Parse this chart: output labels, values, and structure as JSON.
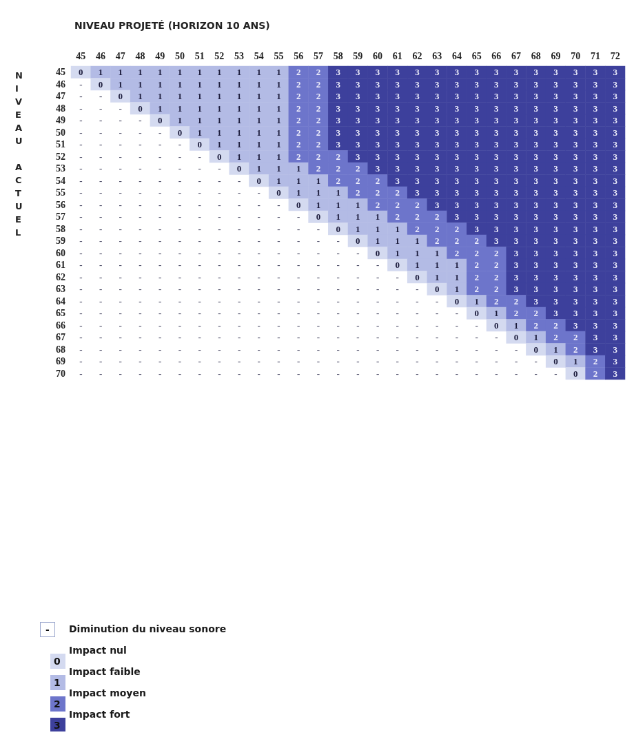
{
  "chart_data": {
    "type": "heatmap",
    "xlabel": "NIVEAU PROJETÉ (HORIZON 10 ANS)",
    "ylabel": "NIVEAU ACTUEL",
    "categories": [
      "45",
      "46",
      "47",
      "48",
      "49",
      "50",
      "51",
      "52",
      "53",
      "54",
      "55",
      "56",
      "57",
      "58",
      "59",
      "60",
      "61",
      "62",
      "63",
      "64",
      "65",
      "66",
      "67",
      "68",
      "69",
      "70",
      "71",
      "72"
    ],
    "y_categories": [
      "45",
      "46",
      "47",
      "48",
      "49",
      "50",
      "51",
      "52",
      "53",
      "54",
      "55",
      "56",
      "57",
      "58",
      "59",
      "60",
      "61",
      "62",
      "63",
      "64",
      "65",
      "66",
      "67",
      "68",
      "69",
      "70"
    ],
    "cells": [
      [
        0,
        1,
        1,
        1,
        1,
        1,
        1,
        1,
        1,
        1,
        1,
        2,
        2,
        3,
        3,
        3,
        3,
        3,
        3,
        3,
        3,
        3,
        3,
        3,
        3,
        3,
        3,
        3
      ],
      [
        null,
        0,
        1,
        1,
        1,
        1,
        1,
        1,
        1,
        1,
        1,
        2,
        2,
        3,
        3,
        3,
        3,
        3,
        3,
        3,
        3,
        3,
        3,
        3,
        3,
        3,
        3,
        3
      ],
      [
        null,
        null,
        0,
        1,
        1,
        1,
        1,
        1,
        1,
        1,
        1,
        2,
        2,
        3,
        3,
        3,
        3,
        3,
        3,
        3,
        3,
        3,
        3,
        3,
        3,
        3,
        3,
        3
      ],
      [
        null,
        null,
        null,
        0,
        1,
        1,
        1,
        1,
        1,
        1,
        1,
        2,
        2,
        3,
        3,
        3,
        3,
        3,
        3,
        3,
        3,
        3,
        3,
        3,
        3,
        3,
        3,
        3
      ],
      [
        null,
        null,
        null,
        null,
        0,
        1,
        1,
        1,
        1,
        1,
        1,
        2,
        2,
        3,
        3,
        3,
        3,
        3,
        3,
        3,
        3,
        3,
        3,
        3,
        3,
        3,
        3,
        3
      ],
      [
        null,
        null,
        null,
        null,
        null,
        0,
        1,
        1,
        1,
        1,
        1,
        2,
        2,
        3,
        3,
        3,
        3,
        3,
        3,
        3,
        3,
        3,
        3,
        3,
        3,
        3,
        3,
        3
      ],
      [
        null,
        null,
        null,
        null,
        null,
        null,
        0,
        1,
        1,
        1,
        1,
        2,
        2,
        3,
        3,
        3,
        3,
        3,
        3,
        3,
        3,
        3,
        3,
        3,
        3,
        3,
        3,
        3
      ],
      [
        null,
        null,
        null,
        null,
        null,
        null,
        null,
        0,
        1,
        1,
        1,
        2,
        2,
        2,
        3,
        3,
        3,
        3,
        3,
        3,
        3,
        3,
        3,
        3,
        3,
        3,
        3,
        3
      ],
      [
        null,
        null,
        null,
        null,
        null,
        null,
        null,
        null,
        0,
        1,
        1,
        1,
        2,
        2,
        2,
        3,
        3,
        3,
        3,
        3,
        3,
        3,
        3,
        3,
        3,
        3,
        3,
        3
      ],
      [
        null,
        null,
        null,
        null,
        null,
        null,
        null,
        null,
        null,
        0,
        1,
        1,
        1,
        2,
        2,
        2,
        3,
        3,
        3,
        3,
        3,
        3,
        3,
        3,
        3,
        3,
        3,
        3
      ],
      [
        null,
        null,
        null,
        null,
        null,
        null,
        null,
        null,
        null,
        null,
        0,
        1,
        1,
        1,
        2,
        2,
        2,
        3,
        3,
        3,
        3,
        3,
        3,
        3,
        3,
        3,
        3,
        3
      ],
      [
        null,
        null,
        null,
        null,
        null,
        null,
        null,
        null,
        null,
        null,
        null,
        0,
        1,
        1,
        1,
        2,
        2,
        2,
        3,
        3,
        3,
        3,
        3,
        3,
        3,
        3,
        3,
        3
      ],
      [
        null,
        null,
        null,
        null,
        null,
        null,
        null,
        null,
        null,
        null,
        null,
        null,
        0,
        1,
        1,
        1,
        2,
        2,
        2,
        3,
        3,
        3,
        3,
        3,
        3,
        3,
        3,
        3
      ],
      [
        null,
        null,
        null,
        null,
        null,
        null,
        null,
        null,
        null,
        null,
        null,
        null,
        null,
        0,
        1,
        1,
        1,
        2,
        2,
        2,
        3,
        3,
        3,
        3,
        3,
        3,
        3,
        3
      ],
      [
        null,
        null,
        null,
        null,
        null,
        null,
        null,
        null,
        null,
        null,
        null,
        null,
        null,
        null,
        0,
        1,
        1,
        1,
        2,
        2,
        2,
        3,
        3,
        3,
        3,
        3,
        3,
        3
      ],
      [
        null,
        null,
        null,
        null,
        null,
        null,
        null,
        null,
        null,
        null,
        null,
        null,
        null,
        null,
        null,
        0,
        1,
        1,
        1,
        2,
        2,
        2,
        3,
        3,
        3,
        3,
        3,
        3
      ],
      [
        null,
        null,
        null,
        null,
        null,
        null,
        null,
        null,
        null,
        null,
        null,
        null,
        null,
        null,
        null,
        null,
        0,
        1,
        1,
        1,
        2,
        2,
        3,
        3,
        3,
        3,
        3,
        3
      ],
      [
        null,
        null,
        null,
        null,
        null,
        null,
        null,
        null,
        null,
        null,
        null,
        null,
        null,
        null,
        null,
        null,
        null,
        0,
        1,
        1,
        2,
        2,
        3,
        3,
        3,
        3,
        3,
        3
      ],
      [
        null,
        null,
        null,
        null,
        null,
        null,
        null,
        null,
        null,
        null,
        null,
        null,
        null,
        null,
        null,
        null,
        null,
        null,
        0,
        1,
        2,
        2,
        3,
        3,
        3,
        3,
        3,
        3
      ],
      [
        null,
        null,
        null,
        null,
        null,
        null,
        null,
        null,
        null,
        null,
        null,
        null,
        null,
        null,
        null,
        null,
        null,
        null,
        null,
        0,
        1,
        2,
        2,
        3,
        3,
        3,
        3,
        3
      ],
      [
        null,
        null,
        null,
        null,
        null,
        null,
        null,
        null,
        null,
        null,
        null,
        null,
        null,
        null,
        null,
        null,
        null,
        null,
        null,
        null,
        0,
        1,
        2,
        2,
        3,
        3,
        3,
        3
      ],
      [
        null,
        null,
        null,
        null,
        null,
        null,
        null,
        null,
        null,
        null,
        null,
        null,
        null,
        null,
        null,
        null,
        null,
        null,
        null,
        null,
        null,
        0,
        1,
        2,
        2,
        3,
        3,
        3
      ],
      [
        null,
        null,
        null,
        null,
        null,
        null,
        null,
        null,
        null,
        null,
        null,
        null,
        null,
        null,
        null,
        null,
        null,
        null,
        null,
        null,
        null,
        null,
        0,
        1,
        2,
        2,
        3,
        3
      ],
      [
        null,
        null,
        null,
        null,
        null,
        null,
        null,
        null,
        null,
        null,
        null,
        null,
        null,
        null,
        null,
        null,
        null,
        null,
        null,
        null,
        null,
        null,
        null,
        0,
        1,
        2,
        3,
        3
      ],
      [
        null,
        null,
        null,
        null,
        null,
        null,
        null,
        null,
        null,
        null,
        null,
        null,
        null,
        null,
        null,
        null,
        null,
        null,
        null,
        null,
        null,
        null,
        null,
        null,
        0,
        1,
        2,
        3
      ],
      [
        null,
        null,
        null,
        null,
        null,
        null,
        null,
        null,
        null,
        null,
        null,
        null,
        null,
        null,
        null,
        null,
        null,
        null,
        null,
        null,
        null,
        null,
        null,
        null,
        null,
        0,
        2,
        3
      ]
    ],
    "cell_labels": [
      [
        "0",
        "1",
        "1",
        "1",
        "1",
        "1",
        "1",
        "1",
        "1",
        "1",
        "1",
        "2",
        "2",
        "3",
        "3",
        "3",
        "3",
        "3",
        "3",
        "3",
        "3",
        "3",
        "3",
        "3",
        "3",
        "3",
        "3",
        "3"
      ],
      [
        "-",
        "0",
        "1",
        "1",
        "1",
        "1",
        "1",
        "1",
        "1",
        "1",
        "1",
        "2",
        "2",
        "3",
        "3",
        "3",
        "3",
        "3",
        "3",
        "3",
        "3",
        "3",
        "3",
        "3",
        "3",
        "3",
        "3",
        "3"
      ],
      [
        "-",
        "-",
        "0",
        "1",
        "1",
        "1",
        "1",
        "1",
        "1",
        "1",
        "1",
        "2",
        "2",
        "3",
        "3",
        "3",
        "3",
        "3",
        "3",
        "3",
        "3",
        "3",
        "3",
        "3",
        "3",
        "3",
        "3",
        "3"
      ],
      [
        "-",
        "-",
        "-",
        "0",
        "1",
        "1",
        "1",
        "1",
        "1",
        "1",
        "1",
        "2",
        "2",
        "3",
        "3",
        "3",
        "3",
        "3",
        "3",
        "3",
        "3",
        "3",
        "3",
        "3",
        "3",
        "3",
        "3",
        "3"
      ],
      [
        "-",
        "-",
        "-",
        "-",
        "0",
        "1",
        "1",
        "1",
        "1",
        "1",
        "1",
        "2",
        "2",
        "3",
        "3",
        "3",
        "3",
        "3",
        "3",
        "3",
        "3",
        "3",
        "3",
        "3",
        "3",
        "3",
        "3",
        "3"
      ],
      [
        "-",
        "-",
        "-",
        "-",
        "-",
        "0",
        "1",
        "1",
        "1",
        "1",
        "1",
        "2",
        "2",
        "3",
        "3",
        "3",
        "3",
        "3",
        "3",
        "3",
        "3",
        "3",
        "3",
        "3",
        "3",
        "3",
        "3",
        "3"
      ],
      [
        "-",
        "-",
        "-",
        "-",
        "-",
        "-",
        "0",
        "1",
        "1",
        "1",
        "1",
        "2",
        "2",
        "3",
        "3",
        "3",
        "3",
        "3",
        "3",
        "3",
        "3",
        "3",
        "3",
        "3",
        "3",
        "3",
        "3",
        "3"
      ],
      [
        "-",
        "-",
        "-",
        "-",
        "-",
        "-",
        "-",
        "0",
        "1",
        "1",
        "1",
        "2",
        "2",
        "2",
        "3",
        "3",
        "3",
        "3",
        "3",
        "3",
        "3",
        "3",
        "3",
        "3",
        "3",
        "3",
        "3",
        "3"
      ],
      [
        "-",
        "-",
        "-",
        "-",
        "-",
        "-",
        "-",
        "-",
        "0",
        "1",
        "1",
        "1",
        "2",
        "2",
        "2",
        "3",
        "3",
        "3",
        "3",
        "3",
        "3",
        "3",
        "3",
        "3",
        "3",
        "3",
        "3",
        "3"
      ],
      [
        "-",
        "-",
        "-",
        "-",
        "-",
        "-",
        "-",
        "-",
        "-",
        "0",
        "1",
        "1",
        "1",
        "2",
        "2",
        "2",
        "3",
        "3",
        "3",
        "3",
        "3",
        "3",
        "3",
        "3",
        "3",
        "3",
        "3",
        "3"
      ],
      [
        "-",
        "-",
        "-",
        "-",
        "-",
        "-",
        "-",
        "-",
        "-",
        "-",
        "0",
        "1",
        "1",
        "1",
        "2",
        "2",
        "2",
        "3",
        "3",
        "3",
        "3",
        "3",
        "3",
        "3",
        "3",
        "3",
        "3",
        "3"
      ],
      [
        "-",
        "-",
        "-",
        "-",
        "-",
        "-",
        "-",
        "-",
        "-",
        "-",
        "-",
        "0",
        "1",
        "1",
        "1",
        "2",
        "2",
        "2",
        "3",
        "3",
        "3",
        "3",
        "3",
        "3",
        "3",
        "3",
        "3",
        "3"
      ],
      [
        "-",
        "-",
        "-",
        "-",
        "-",
        "-",
        "-",
        "-",
        "-",
        "-",
        "-",
        "-",
        "0",
        "1",
        "1",
        "1",
        "2",
        "2",
        "2",
        "3",
        "3",
        "3",
        "3",
        "3",
        "3",
        "3",
        "3",
        "3"
      ],
      [
        "-",
        "-",
        "-",
        "-",
        "-",
        "-",
        "-",
        "-",
        "-",
        "-",
        "-",
        "-",
        "-",
        "0",
        "1",
        "1",
        "1",
        "2",
        "2",
        "2",
        "3",
        "3",
        "3",
        "3",
        "3",
        "3",
        "3",
        "3"
      ],
      [
        "-",
        "-",
        "-",
        "-",
        "-",
        "-",
        "-",
        "-",
        "-",
        "-",
        "-",
        "-",
        "-",
        "-",
        "0",
        "1",
        "1",
        "1",
        "2",
        "2",
        "2",
        "3",
        "3",
        "3",
        "3",
        "3",
        "3",
        "3"
      ],
      [
        "-",
        "-",
        "-",
        "-",
        "-",
        "-",
        "-",
        "-",
        "-",
        "-",
        "-",
        "-",
        "-",
        "-",
        "-",
        "0",
        "1",
        "1",
        "1",
        "2",
        "2",
        "2",
        "3",
        "3",
        "3",
        "3",
        "3",
        "3"
      ],
      [
        "-",
        "-",
        "-",
        "-",
        "-",
        "-",
        "-",
        "-",
        "-",
        "-",
        "-",
        "-",
        "-",
        "-",
        "-",
        "-",
        "0",
        "1",
        "1",
        "1",
        "2",
        "2",
        "3",
        "3",
        "3",
        "3",
        "3",
        "3"
      ],
      [
        "-",
        "-",
        "-",
        "-",
        "-",
        "-",
        "-",
        "-",
        "-",
        "-",
        "-",
        "-",
        "-",
        "-",
        "-",
        "-",
        "-",
        "0",
        "1",
        "1",
        "2",
        "2",
        "3",
        "3",
        "3",
        "3",
        "3",
        "3"
      ],
      [
        "-",
        "-",
        "-",
        "-",
        "-",
        "-",
        "-",
        "-",
        "-",
        "-",
        "-",
        "-",
        "-",
        "-",
        "-",
        "-",
        "-",
        "-",
        "0",
        "1",
        "2",
        "2",
        "3",
        "3",
        "3",
        "3",
        "3",
        "3"
      ],
      [
        "-",
        "-",
        "-",
        "-",
        "-",
        "-",
        "-",
        "-",
        "-",
        "-",
        "-",
        "-",
        "-",
        "-",
        "-",
        "-",
        "-",
        "-",
        "-",
        "0",
        "1",
        "2",
        "2",
        "3",
        "3",
        "3",
        "3",
        "3"
      ],
      [
        "-",
        "-",
        "-",
        "-",
        "-",
        "-",
        "-",
        "-",
        "-",
        "-",
        "-",
        "-",
        "-",
        "-",
        "-",
        "-",
        "-",
        "-",
        "-",
        "-",
        "0",
        "1",
        "2",
        "2",
        "3",
        "3",
        "3",
        "3"
      ],
      [
        "-",
        "-",
        "-",
        "-",
        "-",
        "-",
        "-",
        "-",
        "-",
        "-",
        "-",
        "-",
        "-",
        "-",
        "-",
        "-",
        "-",
        "-",
        "-",
        "-",
        "-",
        "0",
        "1",
        "2",
        "2",
        "3",
        "3",
        "3"
      ],
      [
        "-",
        "-",
        "-",
        "-",
        "-",
        "-",
        "-",
        "-",
        "-",
        "-",
        "-",
        "-",
        "-",
        "-",
        "-",
        "-",
        "-",
        "-",
        "-",
        "-",
        "-",
        "-",
        "0",
        "1",
        "2",
        "2",
        "3",
        "3"
      ],
      [
        "-",
        "-",
        "-",
        "-",
        "-",
        "-",
        "-",
        "-",
        "-",
        "-",
        "-",
        "-",
        "-",
        "-",
        "-",
        "-",
        "-",
        "-",
        "-",
        "-",
        "-",
        "-",
        "-",
        "0",
        "1",
        "2",
        "3",
        "3"
      ],
      [
        "-",
        "-",
        "-",
        "-",
        "-",
        "-",
        "-",
        "-",
        "-",
        "-",
        "-",
        "-",
        "-",
        "-",
        "-",
        "-",
        "-",
        "-",
        "-",
        "-",
        "-",
        "-",
        "-",
        "-",
        "0",
        "1",
        "2",
        "3"
      ],
      [
        "-",
        "-",
        "-",
        "-",
        "-",
        "-",
        "-",
        "-",
        "-",
        "-",
        "-",
        "-",
        "-",
        "-",
        "-",
        "-",
        "-",
        "-",
        "-",
        "-",
        "-",
        "-",
        "-",
        "-",
        "-",
        "0",
        "2",
        "3"
      ]
    ],
    "clim": [
      0,
      3
    ],
    "cticks": [
      0,
      1,
      2,
      3
    ],
    "colors": [
      "#d4daf0",
      "#b3bbe5",
      "#6d75cb",
      "#3d409c"
    ],
    "annotations": [
      "Diminution du niveau sonore",
      "Impact nul",
      "Impact faible",
      "Impact moyen",
      "Impact fort"
    ]
  }
}
